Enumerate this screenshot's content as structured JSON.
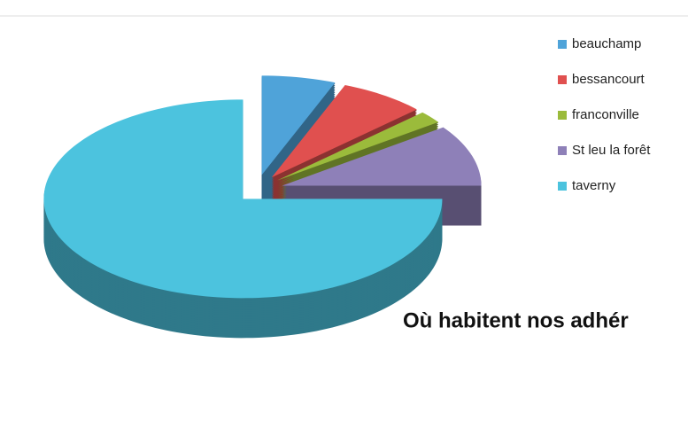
{
  "chart_data": {
    "type": "pie3d",
    "title": "Où habitent nos adhér",
    "categories": [
      "beauchamp",
      "bessancourt",
      "franconville",
      "St leu la forêt",
      "taverny"
    ],
    "values": [
      6,
      7,
      2,
      10,
      75
    ],
    "colors": [
      "#4fa3d9",
      "#e0504f",
      "#9bbb3b",
      "#8e80b8",
      "#4cc3de"
    ],
    "legend": "right"
  }
}
